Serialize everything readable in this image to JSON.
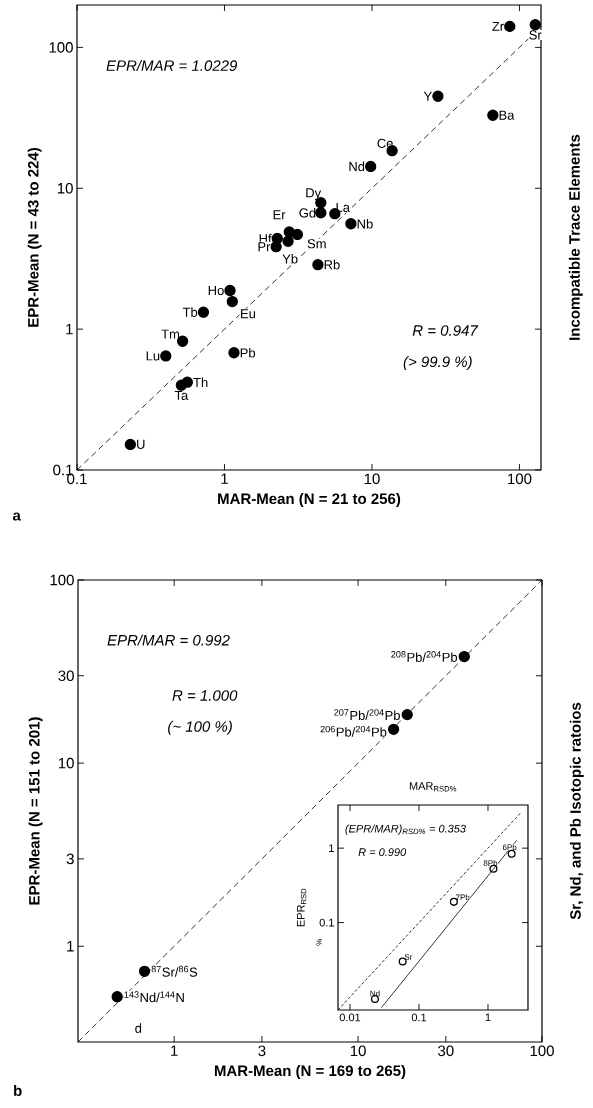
{
  "chart_data": [
    {
      "type": "scatter",
      "xlabel": "MAR-Mean (N = 21 to 256)",
      "ylabel": "EPR-Mean (N = 43 to 224)",
      "y2label": "Incompatible Trace Elements",
      "log": "xy",
      "marker": "circle",
      "xlim": [
        0.1,
        140
      ],
      "ylim": [
        0.1,
        200
      ],
      "xticks": [
        0.1,
        1,
        10,
        100
      ],
      "yticks": [
        0.1,
        1,
        10,
        100
      ],
      "series": [
        {
          "type": "scatter",
          "color": "#000000",
          "x": [
            86,
            128,
            28,
            66,
            13.7,
            9.8,
            4.5,
            5.6,
            4.5,
            7.2,
            2.75,
            2.28,
            2.24,
            3.12,
            2.7,
            4.3,
            1.09,
            1.13,
            0.72,
            0.52,
            0.4,
            1.16,
            0.56,
            0.51,
            0.23
          ],
          "values": [
            141,
            145,
            45,
            33,
            18.5,
            14.3,
            7.9,
            6.6,
            6.7,
            5.6,
            4.9,
            4.4,
            3.85,
            4.7,
            4.2,
            2.87,
            1.88,
            1.57,
            1.32,
            0.82,
            0.645,
            0.68,
            0.42,
            0.4,
            0.152
          ]
        },
        {
          "type": "line",
          "color": "#000000",
          "line_style": "dashed",
          "marker": "none",
          "x": [
            0.1,
            130
          ],
          "values": [
            0.1,
            130
          ]
        }
      ],
      "annotations": [
        "EPR/MAR = 1.0229",
        "R = 0.947",
        "(> 99.9 %)",
        "a",
        {
          "text": "Zr",
          "x": 86,
          "y": 141
        },
        {
          "text": "Sr",
          "x": 128,
          "y": 145
        },
        {
          "text": "Y",
          "x": 28,
          "y": 45
        },
        {
          "text": "Ba",
          "x": 66,
          "y": 33
        },
        {
          "text": "Ce",
          "x": 13.7,
          "y": 18.5
        },
        {
          "text": "Nd",
          "x": 9.8,
          "y": 14.3
        },
        {
          "text": "Dy",
          "x": 4.5,
          "y": 7.9
        },
        {
          "text": "La",
          "x": 5.6,
          "y": 6.6
        },
        {
          "text": "Gd",
          "x": 4.5,
          "y": 6.7
        },
        {
          "text": "Nb",
          "x": 7.2,
          "y": 5.6
        },
        {
          "text": "Er",
          "x": 2.75,
          "y": 4.9
        },
        {
          "text": "Hf",
          "x": 2.28,
          "y": 4.4
        },
        {
          "text": "Pr",
          "x": 2.24,
          "y": 3.85
        },
        {
          "text": "Sm",
          "x": 3.12,
          "y": 4.7
        },
        {
          "text": "Yb",
          "x": 2.7,
          "y": 4.2
        },
        {
          "text": "Rb",
          "x": 4.3,
          "y": 2.87
        },
        {
          "text": "Ho",
          "x": 1.09,
          "y": 1.88
        },
        {
          "text": "Eu",
          "x": 1.13,
          "y": 1.57
        },
        {
          "text": "Tb",
          "x": 0.72,
          "y": 1.32
        },
        {
          "text": "Tm",
          "x": 0.52,
          "y": 0.82
        },
        {
          "text": "Lu",
          "x": 0.4,
          "y": 0.645
        },
        {
          "text": "Pb",
          "x": 1.16,
          "y": 0.68
        },
        {
          "text": "Th",
          "x": 0.56,
          "y": 0.42
        },
        {
          "text": "Ta",
          "x": 0.51,
          "y": 0.4
        },
        {
          "text": "U",
          "x": 0.23,
          "y": 0.152
        }
      ]
    },
    {
      "type": "scatter",
      "xlabel": "MAR-Mean (N = 169 to 265)",
      "ylabel": "EPR-Mean (N = 151 to 201)",
      "y2label": "Sr, Nd, and Pb Isotopic ratoios",
      "log": "xy",
      "marker": "circle",
      "xlim": [
        0.3,
        100
      ],
      "ylim": [
        0.3,
        100
      ],
      "xticks": [
        1,
        3,
        10,
        30,
        100
      ],
      "yticks": [
        1,
        3,
        10,
        30,
        100
      ],
      "series": [
        {
          "type": "scatter",
          "color": "#000000",
          "x": [
            37.8,
            18.5,
            15.6,
            0.69,
            0.49
          ],
          "values": [
            38.2,
            18.4,
            15.3,
            0.73,
            0.53
          ]
        },
        {
          "type": "line",
          "color": "#000000",
          "line_style": "dashed",
          "marker": "none",
          "x": [
            0.3,
            100
          ],
          "values": [
            0.3,
            100
          ]
        }
      ],
      "annotations": [
        "EPR/MAR = 0.992",
        "R = 1.000",
        "(~ 100 %)",
        "b",
        "d",
        {
          "text": "$^{208}$Pb/$^{204}$Pb",
          "x": 37.8,
          "y": 38.2
        },
        {
          "text": "$^{207}$Pb/$^{204}$Pb",
          "x": 18.5,
          "y": 18.4
        },
        {
          "text": "$^{206}$Pb/$^{204}$Pb",
          "x": 15.6,
          "y": 15.3
        },
        {
          "text": "$^{87}$Sr/$^{86}$S",
          "x": 0.69,
          "y": 0.73
        },
        {
          "text": "$^{143}$Nd/$^{144}$N",
          "x": 0.49,
          "y": 0.53
        }
      ]
    },
    {
      "type": "scatter",
      "xlabel": "MAR$_{RSD%}$",
      "ylabel": "EPR$_{RSD}$",
      "log": "xy",
      "marker": "circle",
      "xlim": [
        0.0067,
        3.8
      ],
      "ylim": [
        0.0067,
        3.8
      ],
      "xticks": [
        0.01,
        0.1,
        1
      ],
      "yticks": [
        0.1,
        1
      ],
      "series": [
        {
          "type": "scatter",
          "color": "#000000",
          "x": [
            0.023,
            0.058,
            0.32,
            1.2,
            2.2
          ],
          "values": [
            0.0094,
            0.03,
            0.19,
            0.53,
            0.84
          ]
        },
        {
          "type": "line",
          "color": "#000000",
          "line_style": "solid",
          "marker": "none",
          "x": [
            0.0285,
            2.6
          ],
          "values": [
            0.0072,
            1.27
          ]
        },
        {
          "type": "line",
          "color": "#000000",
          "line_style": "dashed",
          "marker": "none",
          "x": [
            0.0067,
            3.0
          ],
          "values": [
            0.0067,
            3.0
          ]
        }
      ],
      "annotations": [
        "(EPR/MAR)$_{RSD%}$ = 0.353",
        "R = 0.990",
        "%",
        {
          "text": "Nd",
          "x": 0.023,
          "y": 0.0094
        },
        {
          "text": "Sr",
          "x": 0.058,
          "y": 0.03
        },
        {
          "text": "7Pb",
          "x": 0.32,
          "y": 0.19
        },
        {
          "text": "8Pb",
          "x": 1.2,
          "y": 0.53
        },
        {
          "text": "6Pb",
          "x": 2.2,
          "y": 0.84
        }
      ]
    }
  ]
}
